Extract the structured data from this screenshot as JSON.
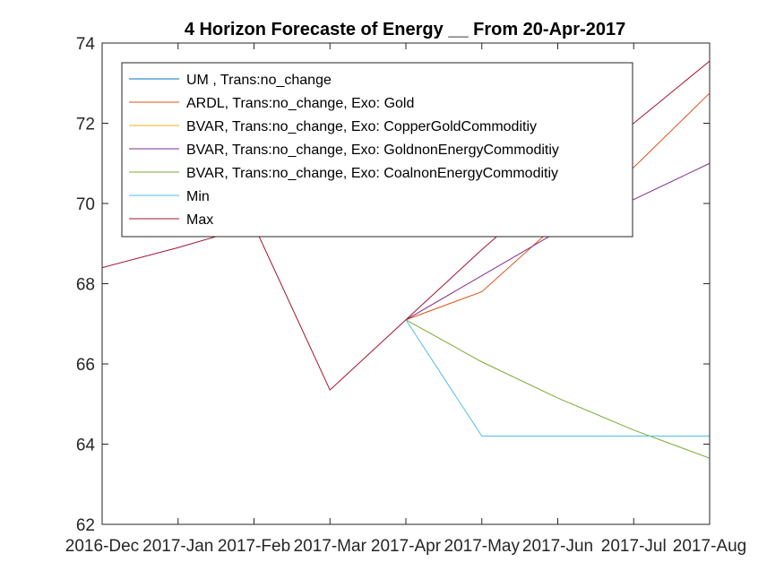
{
  "chart_data": {
    "type": "line",
    "title": "4 Horizon Forecaste of Energy __ From 20-Apr-2017",
    "xlabel": "",
    "ylabel": "",
    "categories": [
      "2016-Dec",
      "2017-Jan",
      "2017-Feb",
      "2017-Mar",
      "2017-Apr",
      "2017-May",
      "2017-Jun",
      "2017-Jul",
      "2017-Aug"
    ],
    "ylim": [
      62,
      74
    ],
    "yticks": [
      "62",
      "64",
      "66",
      "68",
      "70",
      "72",
      "74"
    ],
    "grid": false,
    "legend_position": "top-left",
    "series": [
      {
        "name": "UM , Trans:no_change",
        "color": "#0072BD",
        "values": [
          null,
          null,
          null,
          null,
          null,
          null,
          null,
          null,
          null
        ]
      },
      {
        "name": "ARDL, Trans:no_change, Exo: Gold",
        "color": "#D95319",
        "values": [
          null,
          null,
          null,
          null,
          67.1,
          67.8,
          69.5,
          70.9,
          72.75
        ]
      },
      {
        "name": "BVAR, Trans:no_change, Exo: CopperGoldCommoditiy",
        "color": "#EDB120",
        "values": [
          null,
          null,
          null,
          null,
          null,
          null,
          null,
          null,
          null
        ]
      },
      {
        "name": "BVAR, Trans:no_change, Exo: GoldnonEnergyCommoditiy",
        "color": "#7E2F8E",
        "values": [
          null,
          null,
          null,
          null,
          67.1,
          68.2,
          69.3,
          70.1,
          71.0
        ]
      },
      {
        "name": "BVAR, Trans:no_change, Exo: CoalnonEnergyCommoditiy",
        "color": "#77AC30",
        "values": [
          null,
          null,
          null,
          null,
          67.1,
          66.05,
          65.15,
          64.35,
          63.65
        ]
      },
      {
        "name": "Min",
        "color": "#4DBEEE",
        "values": [
          null,
          null,
          null,
          null,
          67.1,
          64.2,
          64.2,
          64.2,
          64.2
        ]
      },
      {
        "name": "Max",
        "color": "#A2142F",
        "values": [
          68.4,
          68.9,
          69.45,
          65.35,
          67.1,
          68.85,
          70.5,
          72.0,
          73.55
        ]
      }
    ]
  }
}
